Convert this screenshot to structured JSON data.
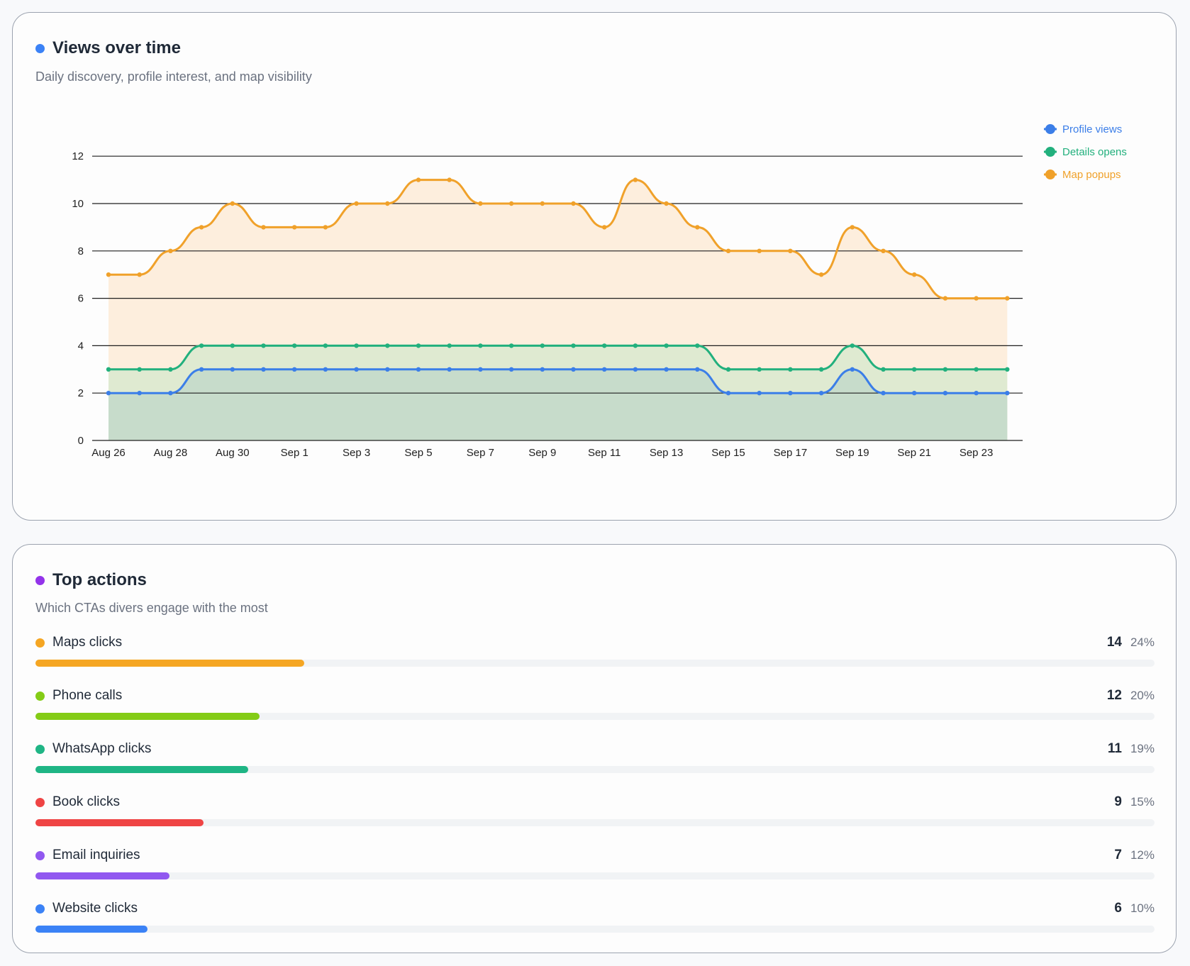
{
  "views": {
    "title": "Views over time",
    "subtitle": "Daily discovery, profile interest, and map visibility",
    "dot_color": "#3b82f6"
  },
  "chart_data": {
    "type": "area",
    "title": "Views over time",
    "ylim": [
      0,
      12
    ],
    "y_ticks": [
      "0",
      "2",
      "4",
      "6",
      "8",
      "10",
      "12"
    ],
    "grid": true,
    "legend_position": "top-right",
    "x": [
      "Aug 26",
      "Aug 27",
      "Aug 28",
      "Aug 29",
      "Aug 30",
      "Aug 31",
      "Sep 1",
      "Sep 2",
      "Sep 3",
      "Sep 4",
      "Sep 5",
      "Sep 6",
      "Sep 7",
      "Sep 8",
      "Sep 9",
      "Sep 10",
      "Sep 11",
      "Sep 12",
      "Sep 13",
      "Sep 14",
      "Sep 15",
      "Sep 16",
      "Sep 17",
      "Sep 18",
      "Sep 19",
      "Sep 20",
      "Sep 21",
      "Sep 22",
      "Sep 23",
      "Sep 24"
    ],
    "x_tick_labels": [
      "Aug 26",
      "Aug 28",
      "Aug 30",
      "Sep 1",
      "Sep 3",
      "Sep 5",
      "Sep 7",
      "Sep 9",
      "Sep 11",
      "Sep 13",
      "Sep 15",
      "Sep 17",
      "Sep 19",
      "Sep 21",
      "Sep 23"
    ],
    "series": [
      {
        "name": "Map popups",
        "color": "#f0a12a",
        "fill": "#fdeedd",
        "values": [
          7,
          7,
          8,
          9,
          10,
          9,
          9,
          9,
          10,
          10,
          11,
          11,
          10,
          10,
          10,
          10,
          9,
          11,
          10,
          9,
          8,
          8,
          8,
          7,
          9,
          8,
          7,
          6,
          6,
          6
        ]
      },
      {
        "name": "Details opens",
        "color": "#22b07d",
        "fill": "#dfead1",
        "values": [
          3,
          3,
          3,
          4,
          4,
          4,
          4,
          4,
          4,
          4,
          4,
          4,
          4,
          4,
          4,
          4,
          4,
          4,
          4,
          4,
          3,
          3,
          3,
          3,
          4,
          3,
          3,
          3,
          3,
          3
        ]
      },
      {
        "name": "Profile views",
        "color": "#3b7ee8",
        "fill": "#c7dccb",
        "values": [
          2,
          2,
          2,
          3,
          3,
          3,
          3,
          3,
          3,
          3,
          3,
          3,
          3,
          3,
          3,
          3,
          3,
          3,
          3,
          3,
          2,
          2,
          2,
          2,
          3,
          2,
          2,
          2,
          2,
          2
        ]
      }
    ],
    "legend": [
      "Profile views",
      "Details opens",
      "Map popups"
    ]
  },
  "actions": {
    "title": "Top actions",
    "subtitle": "Which CTAs divers engage with the most",
    "dot_color": "#9333ea",
    "items": [
      {
        "label": "Maps clicks",
        "count": "14",
        "pct": "24%",
        "fraction": 0.24,
        "color": "#f5a623"
      },
      {
        "label": "Phone calls",
        "count": "12",
        "pct": "20%",
        "fraction": 0.2,
        "color": "#84cc16"
      },
      {
        "label": "WhatsApp clicks",
        "count": "11",
        "pct": "19%",
        "fraction": 0.19,
        "color": "#1fb585"
      },
      {
        "label": "Book clicks",
        "count": "9",
        "pct": "15%",
        "fraction": 0.15,
        "color": "#ef4444"
      },
      {
        "label": "Email inquiries",
        "count": "7",
        "pct": "12%",
        "fraction": 0.12,
        "color": "#9158f0"
      },
      {
        "label": "Website clicks",
        "count": "6",
        "pct": "10%",
        "fraction": 0.1,
        "color": "#3b82f6"
      }
    ]
  }
}
